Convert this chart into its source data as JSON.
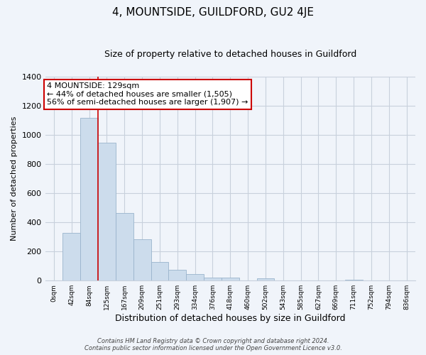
{
  "title": "4, MOUNTSIDE, GUILDFORD, GU2 4JE",
  "subtitle": "Size of property relative to detached houses in Guildford",
  "xlabel": "Distribution of detached houses by size in Guildford",
  "ylabel": "Number of detached properties",
  "bar_labels": [
    "0sqm",
    "42sqm",
    "84sqm",
    "125sqm",
    "167sqm",
    "209sqm",
    "251sqm",
    "293sqm",
    "334sqm",
    "376sqm",
    "418sqm",
    "460sqm",
    "502sqm",
    "543sqm",
    "585sqm",
    "627sqm",
    "669sqm",
    "711sqm",
    "752sqm",
    "794sqm",
    "836sqm"
  ],
  "bar_values": [
    0,
    325,
    1115,
    945,
    465,
    285,
    130,
    72,
    47,
    20,
    20,
    0,
    15,
    0,
    0,
    0,
    0,
    5,
    0,
    0,
    0
  ],
  "bar_color": "#ccdcec",
  "bar_edge_color": "#9ab4cc",
  "vline_x": 3,
  "vline_color": "#cc0000",
  "ylim": [
    0,
    1400
  ],
  "yticks": [
    0,
    200,
    400,
    600,
    800,
    1000,
    1200,
    1400
  ],
  "annotation_text": "4 MOUNTSIDE: 129sqm\n← 44% of detached houses are smaller (1,505)\n56% of semi-detached houses are larger (1,907) →",
  "annotation_box_color": "#ffffff",
  "annotation_box_edge": "#cc0000",
  "footer_line1": "Contains HM Land Registry data © Crown copyright and database right 2024.",
  "footer_line2": "Contains public sector information licensed under the Open Government Licence v3.0.",
  "bg_color": "#f0f4fa",
  "grid_color": "#c8d0dc"
}
